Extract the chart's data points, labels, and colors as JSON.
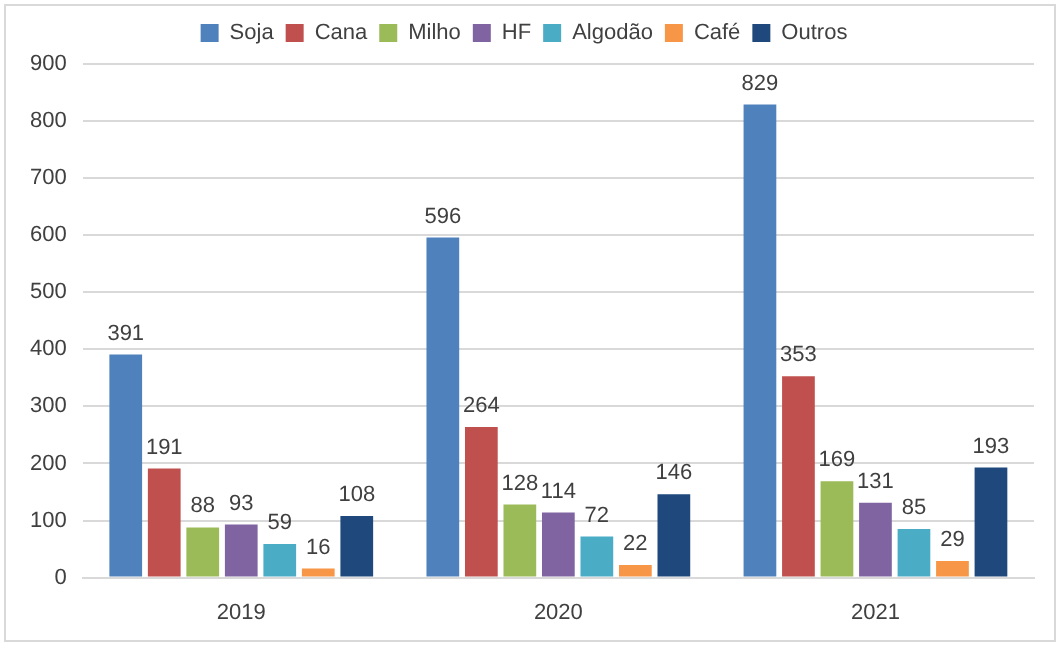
{
  "chart_data": {
    "type": "bar",
    "categories": [
      "2019",
      "2020",
      "2021"
    ],
    "series": [
      {
        "name": "Soja",
        "color": "#4f81bd",
        "values": [
          391,
          596,
          829
        ]
      },
      {
        "name": "Cana",
        "color": "#c0504d",
        "values": [
          191,
          264,
          353
        ]
      },
      {
        "name": "Milho",
        "color": "#9bbb59",
        "values": [
          88,
          128,
          169
        ]
      },
      {
        "name": "HF",
        "color": "#8064a2",
        "values": [
          93,
          114,
          131
        ]
      },
      {
        "name": "Algodão",
        "color": "#4bacc6",
        "values": [
          59,
          72,
          85
        ]
      },
      {
        "name": "Café",
        "color": "#f79646",
        "values": [
          16,
          22,
          29
        ]
      },
      {
        "name": "Outros",
        "color": "#1f497d",
        "values": [
          108,
          146,
          193
        ]
      }
    ],
    "ylim": [
      0,
      900
    ],
    "yticks": [
      0,
      100,
      200,
      300,
      400,
      500,
      600,
      700,
      800,
      900
    ],
    "grid": "y",
    "legend": "top",
    "data_labels": true
  }
}
